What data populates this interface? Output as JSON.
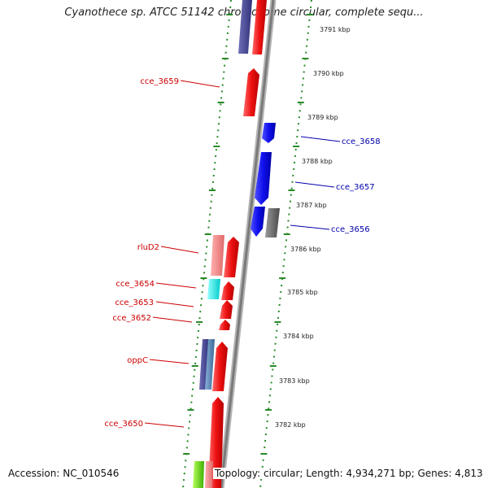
{
  "header": {
    "title": "Cyanothece sp. ATCC 51142 chromosome circular, complete sequ..."
  },
  "footer": {
    "accession": "Accession: NC_010546",
    "summary": "Topology: circular; Length: 4,934,271 bp; Genes: 4,813"
  },
  "colors": {
    "forward_label": "#cc0000",
    "reverse_label": "#0000aa",
    "backbone": "#8a8a8a",
    "ticks": "#2a8a2a"
  },
  "kbp_ticks": [
    {
      "label": "3791 kbp"
    },
    {
      "label": "3790 kbp"
    },
    {
      "label": "3789 kbp"
    },
    {
      "label": "3788 kbp"
    },
    {
      "label": "3787 kbp"
    },
    {
      "label": "3786 kbp"
    },
    {
      "label": "3785 kbp"
    },
    {
      "label": "3784 kbp"
    },
    {
      "label": "3783 kbp"
    },
    {
      "label": "3782 kbp"
    }
  ],
  "gene_labels": {
    "forward": [
      {
        "name": "cce_3659"
      },
      {
        "name": "rluD2"
      },
      {
        "name": "cce_3654"
      },
      {
        "name": "cce_3653"
      },
      {
        "name": "cce_3652"
      },
      {
        "name": "oppC"
      },
      {
        "name": "cce_3650"
      }
    ],
    "reverse": [
      {
        "name": "cce_3658"
      },
      {
        "name": "cce_3657"
      },
      {
        "name": "cce_3656"
      }
    ]
  }
}
